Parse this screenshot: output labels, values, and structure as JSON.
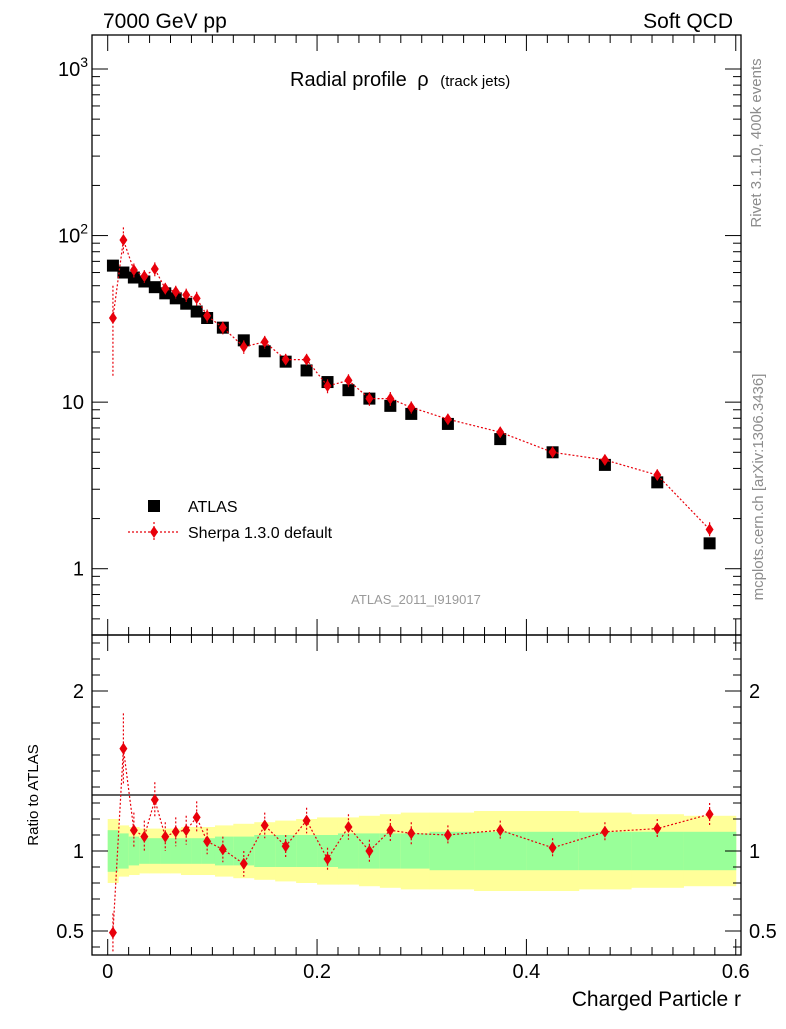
{
  "header": {
    "left": "7000 GeV pp",
    "right": "Soft QCD"
  },
  "side_text": {
    "rivet": "Rivet 3.1.10,  400k events",
    "mcplots": "mcplots.cern.ch [arXiv:1306.3436]"
  },
  "analysis_id": "ATLAS_2011_I919017",
  "colors": {
    "data": "#000000",
    "mc": "#e8000b",
    "band_inner": "#99ff99",
    "band_outer": "#ffff99"
  },
  "chart_data": [
    {
      "type": "scatter",
      "title": "Radial profile",
      "title_symbol": "ρ",
      "title_note": "(track jets)",
      "yscale": "log",
      "ylim": [
        0.4,
        1600
      ],
      "xlim": [
        -0.015,
        0.605
      ],
      "y_ticks": [
        "1",
        "10",
        "10^2",
        "10^3"
      ],
      "legend": {
        "placement": "lower-left",
        "data_label": "ATLAS",
        "mc_label": "Sherpa 1.3.0 default"
      },
      "series": [
        {
          "name": "ATLAS",
          "x": [
            0.005,
            0.015,
            0.025,
            0.035,
            0.045,
            0.055,
            0.065,
            0.075,
            0.085,
            0.095,
            0.11,
            0.13,
            0.15,
            0.17,
            0.19,
            0.21,
            0.23,
            0.25,
            0.27,
            0.29,
            0.325,
            0.375,
            0.425,
            0.475,
            0.525,
            0.575
          ],
          "y": [
            66,
            60,
            56,
            53,
            49,
            45,
            42,
            39,
            35,
            32,
            28,
            23.5,
            20.2,
            17.5,
            15.5,
            13.2,
            11.8,
            10.5,
            9.5,
            8.5,
            7.4,
            6.0,
            5.0,
            4.2,
            3.3,
            1.42
          ]
        },
        {
          "name": "Sherpa 1.3.0 default",
          "x": [
            0.005,
            0.015,
            0.025,
            0.035,
            0.045,
            0.055,
            0.065,
            0.075,
            0.085,
            0.095,
            0.11,
            0.13,
            0.15,
            0.17,
            0.19,
            0.21,
            0.23,
            0.25,
            0.27,
            0.29,
            0.325,
            0.375,
            0.425,
            0.475,
            0.525,
            0.575
          ],
          "y": [
            32,
            94,
            62,
            57,
            63,
            48,
            46,
            44,
            42,
            33,
            28,
            21.5,
            23.0,
            18.0,
            18.0,
            12.5,
            13.5,
            10.5,
            10.5,
            9.3,
            7.9,
            6.6,
            5.0,
            4.5,
            3.65,
            1.72
          ],
          "err": [
            18,
            18,
            6,
            5,
            6,
            4,
            4,
            4,
            4,
            3,
            2.5,
            2,
            2,
            1.5,
            1.5,
            1.2,
            1.2,
            1,
            1,
            0.8,
            0.6,
            0.5,
            0.4,
            0.35,
            0.3,
            0.18
          ]
        }
      ]
    },
    {
      "type": "scatter",
      "ylabel": "Ratio to ATLAS",
      "xlabel": "Charged Particle r",
      "ylim": [
        0.35,
        2.35
      ],
      "xlim": [
        -0.015,
        0.605
      ],
      "y_ticks": [
        "0.5",
        "1",
        "2"
      ],
      "x_ticks": [
        "0",
        "0.2",
        "0.4",
        "0.6"
      ],
      "band": {
        "inner_half_width": [
          0.13,
          0.11,
          0.09,
          0.08,
          0.08,
          0.08,
          0.08,
          0.08,
          0.08,
          0.08,
          0.09,
          0.09,
          0.1,
          0.1,
          0.1,
          0.1,
          0.11,
          0.11,
          0.11,
          0.11,
          0.12,
          0.12,
          0.12,
          0.12,
          0.12,
          0.12
        ],
        "outer_half_width": [
          0.2,
          0.16,
          0.15,
          0.14,
          0.14,
          0.14,
          0.14,
          0.15,
          0.15,
          0.15,
          0.16,
          0.17,
          0.18,
          0.19,
          0.2,
          0.21,
          0.21,
          0.22,
          0.23,
          0.24,
          0.24,
          0.25,
          0.25,
          0.24,
          0.23,
          0.22
        ]
      },
      "series": [
        {
          "name": "Sherpa 1.3.0 default / ATLAS",
          "x": [
            0.005,
            0.015,
            0.025,
            0.035,
            0.045,
            0.055,
            0.065,
            0.075,
            0.085,
            0.095,
            0.11,
            0.13,
            0.15,
            0.17,
            0.19,
            0.21,
            0.23,
            0.25,
            0.27,
            0.29,
            0.325,
            0.375,
            0.425,
            0.475,
            0.525,
            0.575
          ],
          "y": [
            0.49,
            1.64,
            1.13,
            1.09,
            1.32,
            1.09,
            1.12,
            1.13,
            1.21,
            1.06,
            1.01,
            0.92,
            1.16,
            1.03,
            1.19,
            0.95,
            1.15,
            1.0,
            1.13,
            1.11,
            1.1,
            1.13,
            1.02,
            1.12,
            1.14,
            1.23
          ],
          "err": [
            0.12,
            0.22,
            0.11,
            0.1,
            0.11,
            0.09,
            0.09,
            0.09,
            0.1,
            0.08,
            0.08,
            0.08,
            0.08,
            0.07,
            0.08,
            0.07,
            0.08,
            0.07,
            0.07,
            0.07,
            0.06,
            0.06,
            0.06,
            0.06,
            0.06,
            0.07
          ]
        }
      ]
    }
  ]
}
